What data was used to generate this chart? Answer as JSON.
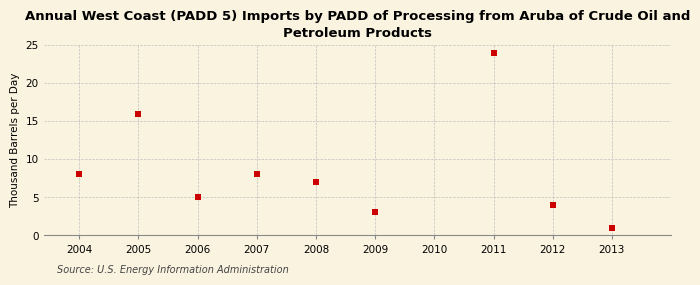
{
  "title": "Annual West Coast (PADD 5) Imports by PADD of Processing from Aruba of Crude Oil and\nPetroleum Products",
  "ylabel": "Thousand Barrels per Day",
  "source": "Source: U.S. Energy Information Administration",
  "x": [
    2004,
    2005,
    2006,
    2007,
    2008,
    2009,
    2011,
    2012,
    2013
  ],
  "y": [
    8.0,
    16.0,
    5.0,
    8.0,
    7.0,
    3.0,
    24.0,
    4.0,
    1.0
  ],
  "marker_color": "#cc0000",
  "marker": "s",
  "marker_size": 4,
  "ylim": [
    0,
    25
  ],
  "yticks": [
    0,
    5,
    10,
    15,
    20,
    25
  ],
  "xlim": [
    2003.4,
    2014.0
  ],
  "xticks": [
    2004,
    2005,
    2006,
    2007,
    2008,
    2009,
    2010,
    2011,
    2012,
    2013
  ],
  "background_color": "#faf3e0",
  "grid_color": "#bbbbbb",
  "title_fontsize": 9.5,
  "label_fontsize": 7.5,
  "tick_fontsize": 7.5,
  "source_fontsize": 7
}
